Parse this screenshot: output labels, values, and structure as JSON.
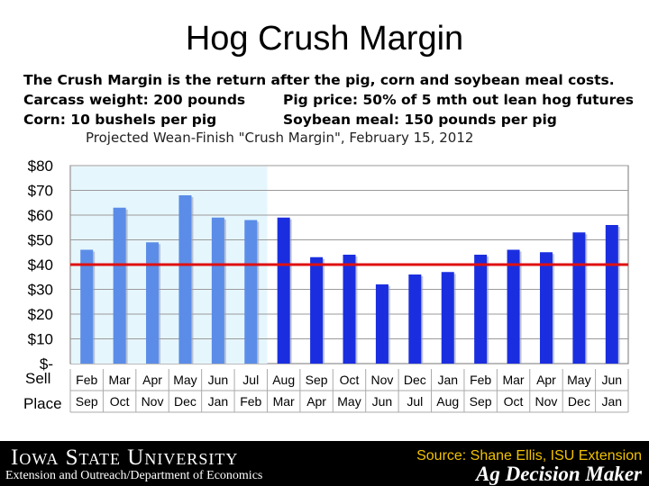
{
  "slide": {
    "title": "Hog Crush Margin",
    "desc_line1": "The Crush Margin is the return after the pig, corn and soybean meal costs.",
    "desc_carcass": "Carcass weight:  200 pounds",
    "desc_pigprice": "Pig price:  50% of 5 mth out lean hog futures",
    "desc_corn": "Corn:  10 bushels per pig",
    "desc_soy": "Soybean meal:  150 pounds per pig"
  },
  "chart_data": {
    "type": "bar",
    "title": "Projected Wean-Finish \"Crush Margin\", February 15, 2012",
    "categories": [
      "Feb",
      "Mar",
      "Apr",
      "May",
      "Jun",
      "Jul",
      "Aug",
      "Sep",
      "Oct",
      "Nov",
      "Dec",
      "Jan",
      "Feb",
      "Mar",
      "Apr",
      "May",
      "Jun"
    ],
    "place_months": [
      "Sep",
      "Oct",
      "Nov",
      "Dec",
      "Jan",
      "Feb",
      "Mar",
      "Apr",
      "May",
      "Jun",
      "Jul",
      "Aug",
      "Sep",
      "Oct",
      "Nov",
      "Dec",
      "Jan"
    ],
    "values": [
      46,
      63,
      49,
      68,
      59,
      58,
      59,
      43,
      44,
      32,
      36,
      37,
      44,
      46,
      45,
      53,
      56
    ],
    "historical_count": 6,
    "reference_line": 40,
    "ylim": [
      0,
      80
    ],
    "yticks": [
      "$-",
      "$10",
      "$20",
      "$30",
      "$40",
      "$50",
      "$60",
      "$70",
      "$80"
    ],
    "row_label_sell": "Sell",
    "row_label_place": "Place",
    "grid": true,
    "colors": {
      "historical_bar": "#5b8de8",
      "projected_bar": "#1a2ee0",
      "reference_line": "#e01010",
      "historical_shade": "#e6f6fd"
    }
  },
  "footer": {
    "university": "Iowa State University",
    "subtitle": "Extension and Outreach/Department of Economics",
    "source": "Source: Shane Ellis, ISU Extension",
    "brand": "Ag Decision Maker",
    "source_color": "#f2c200"
  }
}
